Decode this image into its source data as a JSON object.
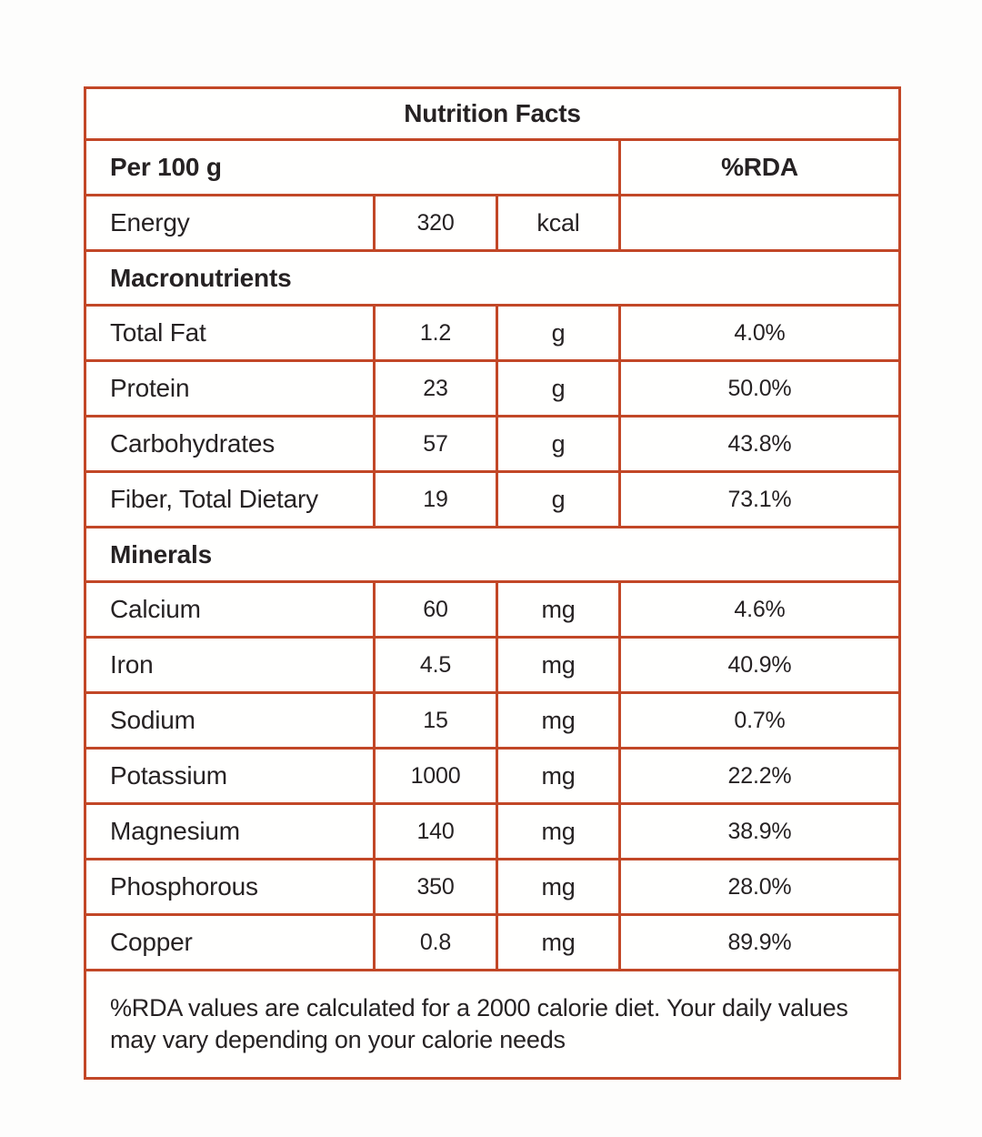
{
  "colors": {
    "accent": "#c24727",
    "text": "#262223",
    "background": "#fdfdfc"
  },
  "table": {
    "title": "Nutrition Facts",
    "header": {
      "serving": "Per 100 g",
      "rda": "%RDA"
    },
    "energy": {
      "name": "Energy",
      "value": "320",
      "unit": "kcal",
      "rda": ""
    },
    "sections": [
      {
        "label": "Macronutrients",
        "rows": [
          {
            "name": "Total Fat",
            "value": "1.2",
            "unit": "g",
            "rda": "4.0%"
          },
          {
            "name": "Protein",
            "value": "23",
            "unit": "g",
            "rda": "50.0%"
          },
          {
            "name": "Carbohydrates",
            "value": "57",
            "unit": "g",
            "rda": "43.8%"
          },
          {
            "name": "Fiber, Total Dietary",
            "value": "19",
            "unit": "g",
            "rda": "73.1%"
          }
        ]
      },
      {
        "label": "Minerals",
        "rows": [
          {
            "name": "Calcium",
            "value": "60",
            "unit": "mg",
            "rda": "4.6%"
          },
          {
            "name": "Iron",
            "value": "4.5",
            "unit": "mg",
            "rda": "40.9%"
          },
          {
            "name": "Sodium",
            "value": "15",
            "unit": "mg",
            "rda": "0.7%"
          },
          {
            "name": "Potassium",
            "value": "1000",
            "unit": "mg",
            "rda": "22.2%"
          },
          {
            "name": "Magnesium",
            "value": "140",
            "unit": "mg",
            "rda": "38.9%"
          },
          {
            "name": "Phosphorous",
            "value": "350",
            "unit": "mg",
            "rda": "28.0%"
          },
          {
            "name": "Copper",
            "value": "0.8",
            "unit": "mg",
            "rda": "89.9%"
          }
        ]
      }
    ],
    "footnote": "%RDA values are calculated for a 2000 calorie diet. Your daily values may vary depending on your calorie needs"
  }
}
